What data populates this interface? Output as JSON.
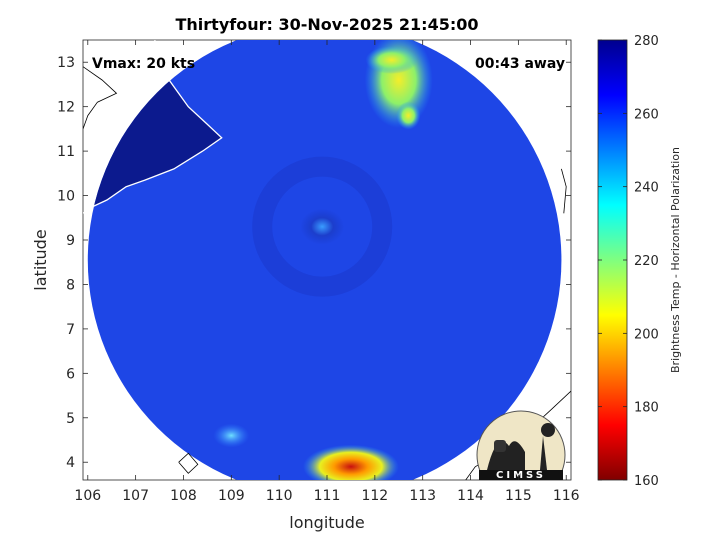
{
  "chart_data": {
    "type": "heatmap",
    "title": "Thirtyfour: 30-Nov-2025 21:45:00",
    "xlabel": "longitude",
    "ylabel": "latitude",
    "xlim": [
      105.9,
      116.1
    ],
    "ylim": [
      3.6,
      13.5
    ],
    "xticks": [
      "106",
      "107",
      "108",
      "109",
      "110",
      "111",
      "112",
      "113",
      "114",
      "115",
      "116"
    ],
    "yticks": [
      "4",
      "5",
      "6",
      "7",
      "8",
      "9",
      "10",
      "11",
      "12",
      "13"
    ],
    "annotations": {
      "vmax": "Vmax: 20 kts",
      "time_away": "00:43 away"
    },
    "colorbar": {
      "label": "Brightness Temp - Horizontal Polarization",
      "range": [
        160,
        280
      ],
      "ticks": [
        "280",
        "260",
        "240",
        "220",
        "200",
        "180",
        "160"
      ],
      "colormap": "jet"
    },
    "swath": {
      "center_lon": 110.95,
      "center_lat": 8.55,
      "radius_deg": 4.95
    },
    "background_tb": 262,
    "features": [
      {
        "name": "storm center",
        "lon": 110.9,
        "lat": 9.3,
        "tb": 252
      },
      {
        "name": "northern warm area",
        "lon": 112.5,
        "lat": 12.6,
        "tb": 225
      },
      {
        "name": "southern warm area",
        "lon": 111.5,
        "lat": 3.9,
        "tb": 185
      },
      {
        "name": "southwestern patch",
        "lon": 109.0,
        "lat": 4.6,
        "tb": 245
      },
      {
        "name": "land region",
        "lon": 108.0,
        "lat": 12.0,
        "tb": 278
      }
    ],
    "logo": "CIMSS",
    "grid": false,
    "colors": {
      "background_blue": "#1e46e6",
      "land": "#0a1a8c",
      "coast": "#ffffff",
      "border": "#000000"
    }
  }
}
